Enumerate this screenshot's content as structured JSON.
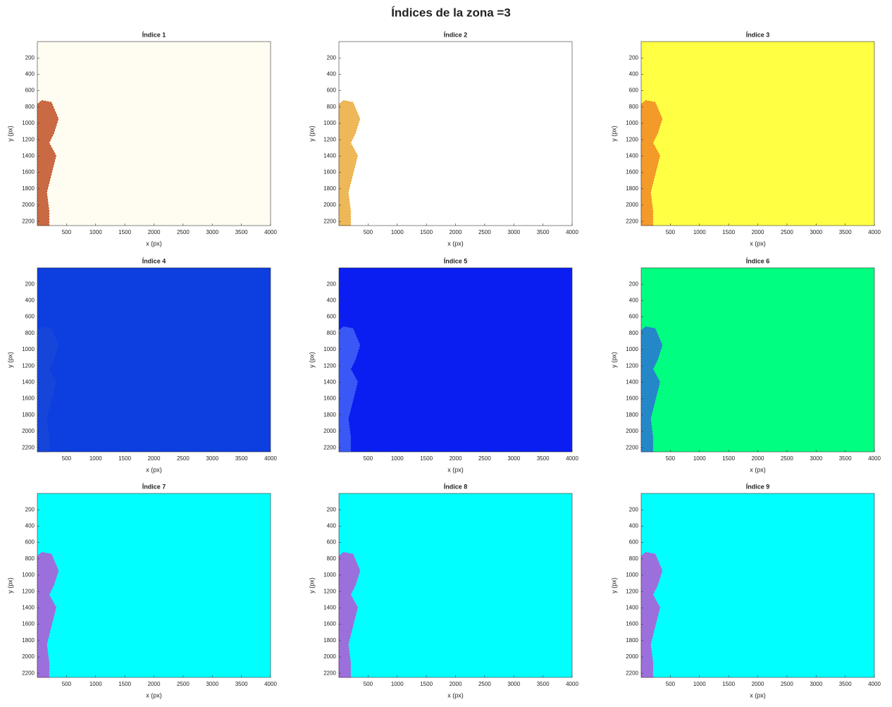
{
  "title": "Índices de la zona =3",
  "chart_data": [
    {
      "type": "image",
      "title": "Índice 1",
      "xlabel": "x (px)",
      "ylabel": "y (px)",
      "color": "#fffcf2",
      "feature_color": "#b83a0a",
      "xlim": [
        0,
        4000
      ],
      "ylim": [
        0,
        2250
      ],
      "y_reversed": true,
      "xticks": [
        500,
        1000,
        1500,
        2000,
        2500,
        3000,
        3500,
        4000
      ],
      "yticks": [
        200,
        400,
        600,
        800,
        1000,
        1200,
        1400,
        1600,
        1800,
        2000,
        2200
      ]
    },
    {
      "type": "image",
      "title": "Índice 2",
      "xlabel": "x (px)",
      "ylabel": "y (px)",
      "color": "#ffffff",
      "feature_color": "#e8a020",
      "xlim": [
        0,
        4000
      ],
      "ylim": [
        0,
        2250
      ],
      "y_reversed": true,
      "xticks": [
        500,
        1000,
        1500,
        2000,
        2500,
        3000,
        3500,
        4000
      ],
      "yticks": [
        200,
        400,
        600,
        800,
        1000,
        1200,
        1400,
        1600,
        1800,
        2000,
        2200
      ]
    },
    {
      "type": "image",
      "title": "Índice 3",
      "xlabel": "x (px)",
      "ylabel": "y (px)",
      "color": "#ffff44",
      "feature_color": "#f07820",
      "xlim": [
        0,
        4000
      ],
      "ylim": [
        0,
        2250
      ],
      "y_reversed": true,
      "xticks": [
        500,
        1000,
        1500,
        2000,
        2500,
        3000,
        3500,
        4000
      ],
      "yticks": [
        200,
        400,
        600,
        800,
        1000,
        1200,
        1400,
        1600,
        1800,
        2000,
        2200
      ]
    },
    {
      "type": "image",
      "title": "Índice 4",
      "xlabel": "x (px)",
      "ylabel": "y (px)",
      "color": "#0d3ee0",
      "feature_color": "#1a48d8",
      "xlim": [
        0,
        4000
      ],
      "ylim": [
        0,
        2250
      ],
      "y_reversed": true,
      "xticks": [
        500,
        1000,
        1500,
        2000,
        2500,
        3000,
        3500,
        4000
      ],
      "yticks": [
        200,
        400,
        600,
        800,
        1000,
        1200,
        1400,
        1600,
        1800,
        2000,
        2200
      ]
    },
    {
      "type": "image",
      "title": "Índice 5",
      "xlabel": "x (px)",
      "ylabel": "y (px)",
      "color": "#0a1ef2",
      "feature_color": "#4a6cf6",
      "xlim": [
        0,
        4000
      ],
      "ylim": [
        0,
        2250
      ],
      "y_reversed": true,
      "xticks": [
        500,
        1000,
        1500,
        2000,
        2500,
        3000,
        3500,
        4000
      ],
      "yticks": [
        200,
        400,
        600,
        800,
        1000,
        1200,
        1400,
        1600,
        1800,
        2000,
        2200
      ]
    },
    {
      "type": "image",
      "title": "Índice 6",
      "xlabel": "x (px)",
      "ylabel": "y (px)",
      "color": "#00ff80",
      "feature_color": "#3060e0",
      "xlim": [
        0,
        4000
      ],
      "ylim": [
        0,
        2250
      ],
      "y_reversed": true,
      "xticks": [
        500,
        1000,
        1500,
        2000,
        2500,
        3000,
        3500,
        4000
      ],
      "yticks": [
        200,
        400,
        600,
        800,
        1000,
        1200,
        1400,
        1600,
        1800,
        2000,
        2200
      ]
    },
    {
      "type": "image",
      "title": "Índice 7",
      "xlabel": "x (px)",
      "ylabel": "y (px)",
      "color": "#00ffff",
      "feature_color": "#d040d0",
      "xlim": [
        0,
        4000
      ],
      "ylim": [
        0,
        2250
      ],
      "y_reversed": true,
      "xticks": [
        500,
        1000,
        1500,
        2000,
        2500,
        3000,
        3500,
        4000
      ],
      "yticks": [
        200,
        400,
        600,
        800,
        1000,
        1200,
        1400,
        1600,
        1800,
        2000,
        2200
      ]
    },
    {
      "type": "image",
      "title": "Índice 8",
      "xlabel": "x (px)",
      "ylabel": "y (px)",
      "color": "#00ffff",
      "feature_color": "#d040d0",
      "xlim": [
        0,
        4000
      ],
      "ylim": [
        0,
        2250
      ],
      "y_reversed": true,
      "xticks": [
        500,
        1000,
        1500,
        2000,
        2500,
        3000,
        3500,
        4000
      ],
      "yticks": [
        200,
        400,
        600,
        800,
        1000,
        1200,
        1400,
        1600,
        1800,
        2000,
        2200
      ]
    },
    {
      "type": "image",
      "title": "Índice 9",
      "xlabel": "x (px)",
      "ylabel": "y (px)",
      "color": "#00ffff",
      "feature_color": "#d040d0",
      "xlim": [
        0,
        4000
      ],
      "ylim": [
        0,
        2250
      ],
      "y_reversed": true,
      "xticks": [
        500,
        1000,
        1500,
        2000,
        2500,
        3000,
        3500,
        4000
      ],
      "yticks": [
        200,
        400,
        600,
        800,
        1000,
        1200,
        1400,
        1600,
        1800,
        2000,
        2200
      ]
    }
  ]
}
